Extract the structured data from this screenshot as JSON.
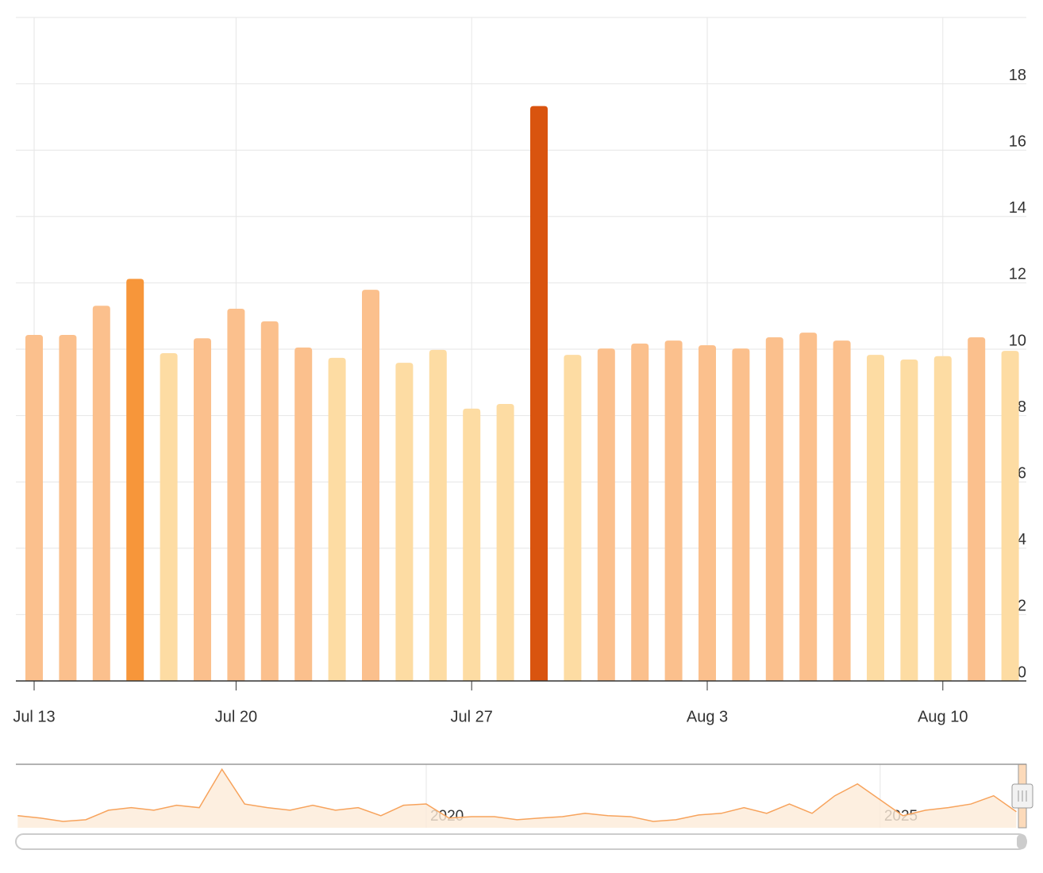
{
  "chart_data": [
    {
      "type": "bar",
      "categories": [
        "Jul 13",
        null,
        null,
        null,
        null,
        null,
        "Jul 20",
        null,
        null,
        null,
        null,
        null,
        null,
        "Jul 27",
        null,
        null,
        null,
        null,
        null,
        null,
        "Aug 3",
        null,
        null,
        null,
        null,
        null,
        null,
        "Aug 10",
        null,
        null
      ],
      "values": [
        10.43,
        10.43,
        11.31,
        12.12,
        9.88,
        10.33,
        11.22,
        10.84,
        10.05,
        9.74,
        11.79,
        9.59,
        9.98,
        8.21,
        8.35,
        17.33,
        9.83,
        10.02,
        10.17,
        10.26,
        10.12,
        10.02,
        10.36,
        10.5,
        10.26,
        9.83,
        9.69,
        9.79,
        10.36,
        9.95
      ],
      "colors": [
        "#fbc08d",
        "#fbc08d",
        "#fbc08d",
        "#f7963a",
        "#fddca3",
        "#fbc08d",
        "#fbc08d",
        "#fbc08d",
        "#fbc08d",
        "#fddca3",
        "#fbc08d",
        "#fddca3",
        "#fddca3",
        "#fddca3",
        "#fddca3",
        "#d9540f",
        "#fddca3",
        "#fbc08d",
        "#fbc08d",
        "#fbc08d",
        "#fbc08d",
        "#fbc08d",
        "#fbc08d",
        "#fbc08d",
        "#fbc08d",
        "#fddca3",
        "#fddca3",
        "#fddca3",
        "#fbc08d",
        "#fddca3"
      ],
      "ylim": [
        0,
        20
      ],
      "yticks": [
        0,
        2,
        4,
        6,
        8,
        10,
        12,
        14,
        16,
        18
      ],
      "grid": true
    },
    {
      "type": "area",
      "color": "#f7a35c",
      "x": [
        2015.5,
        2015.75,
        2016,
        2016.25,
        2016.5,
        2016.75,
        2017,
        2017.25,
        2017.5,
        2017.75,
        2018,
        2018.25,
        2018.5,
        2018.75,
        2019,
        2019.25,
        2019.5,
        2019.75,
        2020,
        2020.25,
        2020.5,
        2020.75,
        2021,
        2021.25,
        2021.5,
        2021.75,
        2022,
        2022.25,
        2022.5,
        2022.75,
        2023,
        2023.25,
        2023.5,
        2023.75,
        2024,
        2024.25,
        2024.5,
        2024.75,
        2025,
        2025.25,
        2025.5,
        2025.75,
        2026,
        2026.25,
        2026.5
      ],
      "values": [
        6.6,
        5.3,
        3.5,
        4.4,
        9.6,
        11,
        9.6,
        12.3,
        11,
        32,
        13,
        11,
        9.6,
        12.3,
        9.6,
        11,
        6.6,
        12.3,
        13,
        5.3,
        6.1,
        6.1,
        4.4,
        5.3,
        6.1,
        7.9,
        6.6,
        6.1,
        3.5,
        4.4,
        7,
        7.9,
        11,
        7.9,
        13,
        7.9,
        17.5,
        24,
        15.3,
        6.6,
        9.6,
        11,
        13,
        17.5,
        8.8
      ],
      "xlim": [
        2015.48,
        2026.61
      ],
      "ylim": [
        0,
        33
      ],
      "xticks": [
        2020,
        2025
      ]
    }
  ]
}
